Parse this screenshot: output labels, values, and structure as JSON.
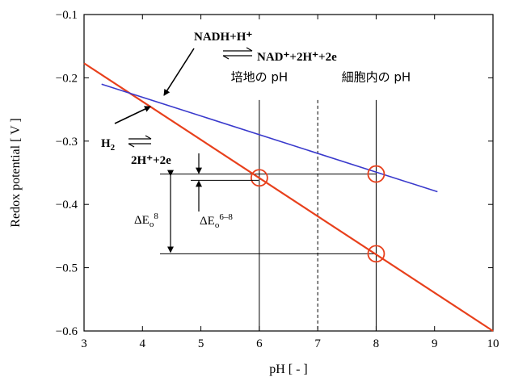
{
  "chart_data": {
    "type": "line",
    "title": "",
    "xlabel": "pH [ - ]",
    "ylabel": "Redox potential [ V ]",
    "xlim": [
      3,
      10
    ],
    "ylim": [
      -0.6,
      -0.1
    ],
    "x_ticks": [
      "3",
      "4",
      "5",
      "6",
      "7",
      "8",
      "9",
      "10"
    ],
    "y_ticks": [
      "−0.1",
      "−0.2",
      "−0.3",
      "−0.4",
      "−0.5",
      "−0.6"
    ],
    "grid": false,
    "colors": {
      "red_line": "#e8401c",
      "blue_line": "#3a3acc",
      "markers": "#e8401c"
    },
    "series": [
      {
        "values": [
          [
            3.0,
            -0.177
          ],
          [
            10.0,
            -0.6
          ]
        ]
      },
      {
        "values": [
          [
            3.3,
            -0.21
          ],
          [
            9.05,
            -0.38
          ]
        ]
      }
    ],
    "vertical_lines": [
      {
        "x": 6,
        "style": "solid",
        "label": "培地の pH"
      },
      {
        "x": 7,
        "style": "dashed",
        "label": ""
      },
      {
        "x": 8,
        "style": "solid",
        "label": "細胞内の pH"
      }
    ],
    "horizontal_lines": [
      {
        "y": -0.352,
        "x_from": 4.3,
        "x_to": 8.0
      },
      {
        "y": -0.478,
        "x_from": 4.3,
        "x_to": 8.0
      }
    ],
    "markers": [
      {
        "x": 6,
        "y": -0.358
      },
      {
        "x": 8,
        "y": -0.352
      },
      {
        "x": 8,
        "y": -0.478
      }
    ],
    "annotations": {
      "nadh_left": "NADH+H⁺",
      "nadh_right": "NAD⁺+2H⁺+2e",
      "h2_left": "H",
      "h2_sub": "2",
      "h2_right": "2H⁺+2e",
      "delta_e8_main": "ΔE",
      "delta_e8_sub": "o",
      "delta_e8_sup": "8",
      "delta_e68_main": "ΔE",
      "delta_e68_sub": "o",
      "delta_e68_sup": "6–8"
    }
  }
}
